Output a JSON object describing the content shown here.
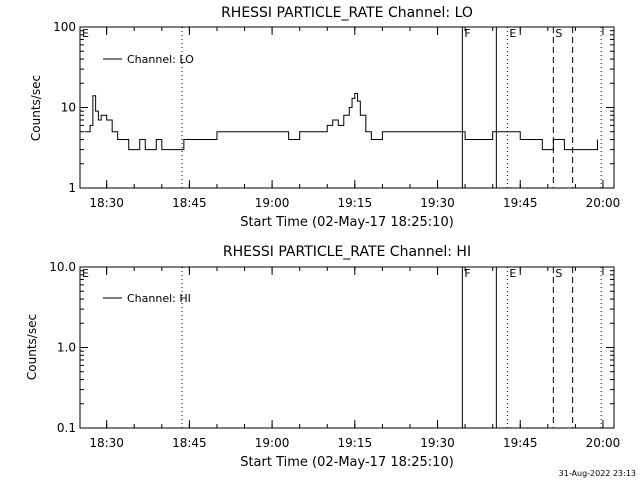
{
  "timestamp": "31-Aug-2022 23:13",
  "chart_data": [
    {
      "type": "line",
      "title": "RHESSI PARTICLE_RATE Channel: LO",
      "xlabel": "Start Time (02-May-17 18:25:10)",
      "ylabel": "Counts/sec",
      "yscale": "log",
      "ylim": [
        1,
        100
      ],
      "xlim": [
        "18:25:10",
        "20:02:00"
      ],
      "x_ticks": [
        "18:30",
        "18:45",
        "19:00",
        "19:15",
        "19:30",
        "19:45",
        "20:00"
      ],
      "y_ticks": [
        "1",
        "10",
        "100"
      ],
      "legend": "top-left",
      "series": [
        {
          "name": "Channel: LO",
          "x": [
            "18:26:00",
            "18:26:30",
            "18:27:00",
            "18:27:30",
            "18:28:00",
            "18:28:30",
            "18:29:00",
            "18:30:00",
            "18:31:00",
            "18:32:00",
            "18:32:30",
            "18:33:00",
            "18:34:00",
            "18:35:00",
            "18:36:00",
            "18:37:00",
            "18:38:00",
            "18:39:00",
            "18:40:00",
            "18:41:00",
            "18:42:00",
            "18:43:00",
            "18:44:00",
            "18:46:00",
            "18:48:00",
            "18:50:00",
            "18:52:00",
            "18:55:00",
            "18:58:00",
            "19:00:00",
            "19:03:00",
            "19:05:00",
            "19:07:00",
            "19:09:00",
            "19:10:00",
            "19:11:00",
            "19:12:00",
            "19:13:00",
            "19:14:00",
            "19:14:30",
            "19:15:00",
            "19:15:30",
            "19:16:00",
            "19:17:00",
            "19:18:00",
            "19:20:00",
            "19:25:00",
            "19:30:00",
            "19:35:00",
            "19:40:00",
            "19:43:00",
            "19:45:00",
            "19:47:00",
            "19:49:00",
            "19:51:00",
            "19:53:00",
            "19:55:00",
            "19:57:00",
            "19:59:00"
          ],
          "values": [
            5,
            5,
            6,
            14,
            9,
            7,
            8,
            7,
            5,
            4,
            4,
            4,
            3,
            3,
            4,
            3,
            3,
            4,
            3,
            3,
            3,
            3,
            4,
            4,
            4,
            5,
            5,
            5,
            5,
            5,
            4,
            5,
            5,
            5,
            6,
            7,
            6,
            8,
            10,
            13,
            15,
            12,
            8,
            5,
            4,
            5,
            5,
            5,
            4,
            5,
            5,
            4,
            4,
            3,
            4,
            3,
            3,
            3,
            4
          ]
        }
      ],
      "markers": [
        {
          "label": "E",
          "x": "18:25:10",
          "style": "dotted"
        },
        {
          "label": "",
          "x": "18:43:40",
          "style": "dotted"
        },
        {
          "label": "F",
          "x": "19:34:30",
          "style": "solid"
        },
        {
          "label": "",
          "x": "19:40:40",
          "style": "solid"
        },
        {
          "label": "E",
          "x": "19:42:40",
          "style": "dotted"
        },
        {
          "label": "S",
          "x": "19:51:00",
          "style": "dashed"
        },
        {
          "label": "",
          "x": "19:54:30",
          "style": "dashed"
        },
        {
          "label": "",
          "x": "19:59:40",
          "style": "dotted"
        }
      ]
    },
    {
      "type": "line",
      "title": "RHESSI PARTICLE_RATE Channel: HI",
      "xlabel": "Start Time (02-May-17 18:25:10)",
      "ylabel": "Counts/sec",
      "yscale": "log",
      "ylim": [
        0.1,
        10.0
      ],
      "xlim": [
        "18:25:10",
        "20:02:00"
      ],
      "x_ticks": [
        "18:30",
        "18:45",
        "19:00",
        "19:15",
        "19:30",
        "19:45",
        "20:00"
      ],
      "y_ticks": [
        "0.1",
        "1.0",
        "10.0"
      ],
      "legend": "top-left",
      "series": [
        {
          "name": "Channel: HI",
          "x": [],
          "values": []
        }
      ],
      "markers": [
        {
          "label": "E",
          "x": "18:25:10",
          "style": "dotted"
        },
        {
          "label": "",
          "x": "18:43:40",
          "style": "dotted"
        },
        {
          "label": "F",
          "x": "19:34:30",
          "style": "solid"
        },
        {
          "label": "",
          "x": "19:40:40",
          "style": "solid"
        },
        {
          "label": "E",
          "x": "19:42:40",
          "style": "dotted"
        },
        {
          "label": "S",
          "x": "19:51:00",
          "style": "dashed"
        },
        {
          "label": "",
          "x": "19:54:30",
          "style": "dashed"
        },
        {
          "label": "",
          "x": "19:59:40",
          "style": "dotted"
        }
      ]
    }
  ]
}
